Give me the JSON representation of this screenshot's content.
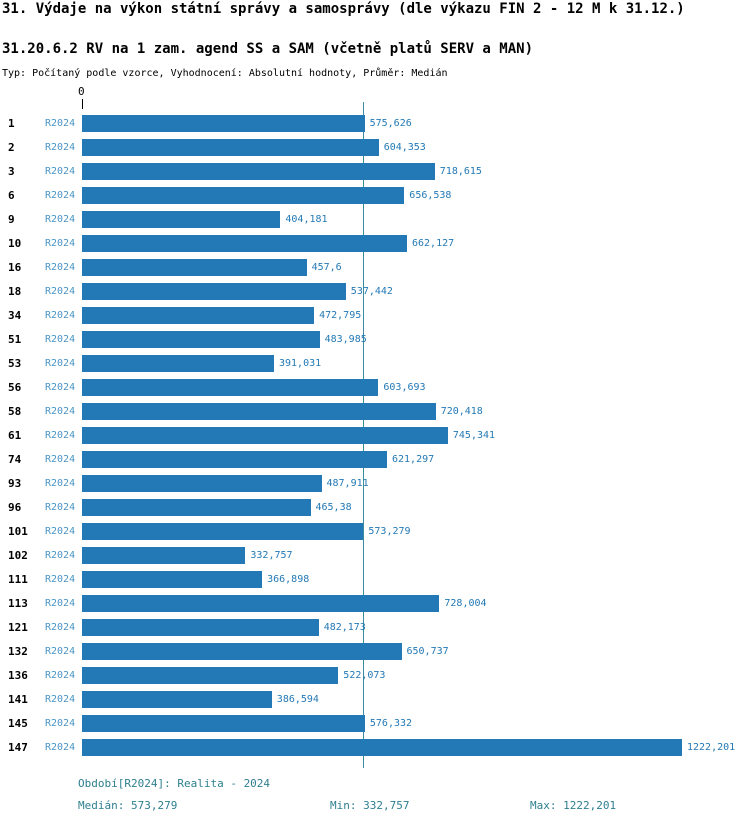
{
  "header": {
    "title": "31. Výdaje na výkon státní správy a samosprávy (dle výkazu FIN 2 - 12 M k 31.12.)",
    "subtitle": "31.20.6.2 RV na 1 zam. agend SS a SAM (včetně platů SERV a MAN)",
    "type_line": "Typ: Počítaný podle vzorce, Vyhodnocení: Absolutní hodnoty, Průměr: Medián"
  },
  "chart_data": {
    "type": "bar",
    "orientation": "horizontal",
    "zero_label": "0",
    "series_label": "R2024",
    "xlim": [
      0,
      1222.201
    ],
    "median_value": 573.279,
    "bar_color": "#2379b5",
    "median_line_color": "#3d8ba0",
    "categories": [
      "1",
      "2",
      "3",
      "6",
      "9",
      "10",
      "16",
      "18",
      "34",
      "51",
      "53",
      "56",
      "58",
      "61",
      "74",
      "93",
      "96",
      "101",
      "102",
      "111",
      "113",
      "121",
      "132",
      "136",
      "141",
      "145",
      "147"
    ],
    "rows": [
      {
        "id": "1",
        "label": "R2024",
        "value": 575.626,
        "value_text": "575,626"
      },
      {
        "id": "2",
        "label": "R2024",
        "value": 604.353,
        "value_text": "604,353"
      },
      {
        "id": "3",
        "label": "R2024",
        "value": 718.615,
        "value_text": "718,615"
      },
      {
        "id": "6",
        "label": "R2024",
        "value": 656.538,
        "value_text": "656,538"
      },
      {
        "id": "9",
        "label": "R2024",
        "value": 404.181,
        "value_text": "404,181"
      },
      {
        "id": "10",
        "label": "R2024",
        "value": 662.127,
        "value_text": "662,127"
      },
      {
        "id": "16",
        "label": "R2024",
        "value": 457.6,
        "value_text": "457,6"
      },
      {
        "id": "18",
        "label": "R2024",
        "value": 537.442,
        "value_text": "537,442"
      },
      {
        "id": "34",
        "label": "R2024",
        "value": 472.795,
        "value_text": "472,795"
      },
      {
        "id": "51",
        "label": "R2024",
        "value": 483.985,
        "value_text": "483,985"
      },
      {
        "id": "53",
        "label": "R2024",
        "value": 391.031,
        "value_text": "391,031"
      },
      {
        "id": "56",
        "label": "R2024",
        "value": 603.693,
        "value_text": "603,693"
      },
      {
        "id": "58",
        "label": "R2024",
        "value": 720.418,
        "value_text": "720,418"
      },
      {
        "id": "61",
        "label": "R2024",
        "value": 745.341,
        "value_text": "745,341"
      },
      {
        "id": "74",
        "label": "R2024",
        "value": 621.297,
        "value_text": "621,297"
      },
      {
        "id": "93",
        "label": "R2024",
        "value": 487.911,
        "value_text": "487,911"
      },
      {
        "id": "96",
        "label": "R2024",
        "value": 465.38,
        "value_text": "465,38"
      },
      {
        "id": "101",
        "label": "R2024",
        "value": 573.279,
        "value_text": "573,279"
      },
      {
        "id": "102",
        "label": "R2024",
        "value": 332.757,
        "value_text": "332,757"
      },
      {
        "id": "111",
        "label": "R2024",
        "value": 366.898,
        "value_text": "366,898"
      },
      {
        "id": "113",
        "label": "R2024",
        "value": 728.004,
        "value_text": "728,004"
      },
      {
        "id": "121",
        "label": "R2024",
        "value": 482.173,
        "value_text": "482,173"
      },
      {
        "id": "132",
        "label": "R2024",
        "value": 650.737,
        "value_text": "650,737"
      },
      {
        "id": "136",
        "label": "R2024",
        "value": 522.073,
        "value_text": "522,073"
      },
      {
        "id": "141",
        "label": "R2024",
        "value": 386.594,
        "value_text": "386,594"
      },
      {
        "id": "145",
        "label": "R2024",
        "value": 576.332,
        "value_text": "576,332"
      },
      {
        "id": "147",
        "label": "R2024",
        "value": 1222.201,
        "value_text": "1222,201"
      }
    ]
  },
  "footer": {
    "period": "Období[R2024]: Realita - 2024",
    "median": "Medián: 573,279",
    "min": "Min: 332,757",
    "max": "Max: 1222,201"
  }
}
